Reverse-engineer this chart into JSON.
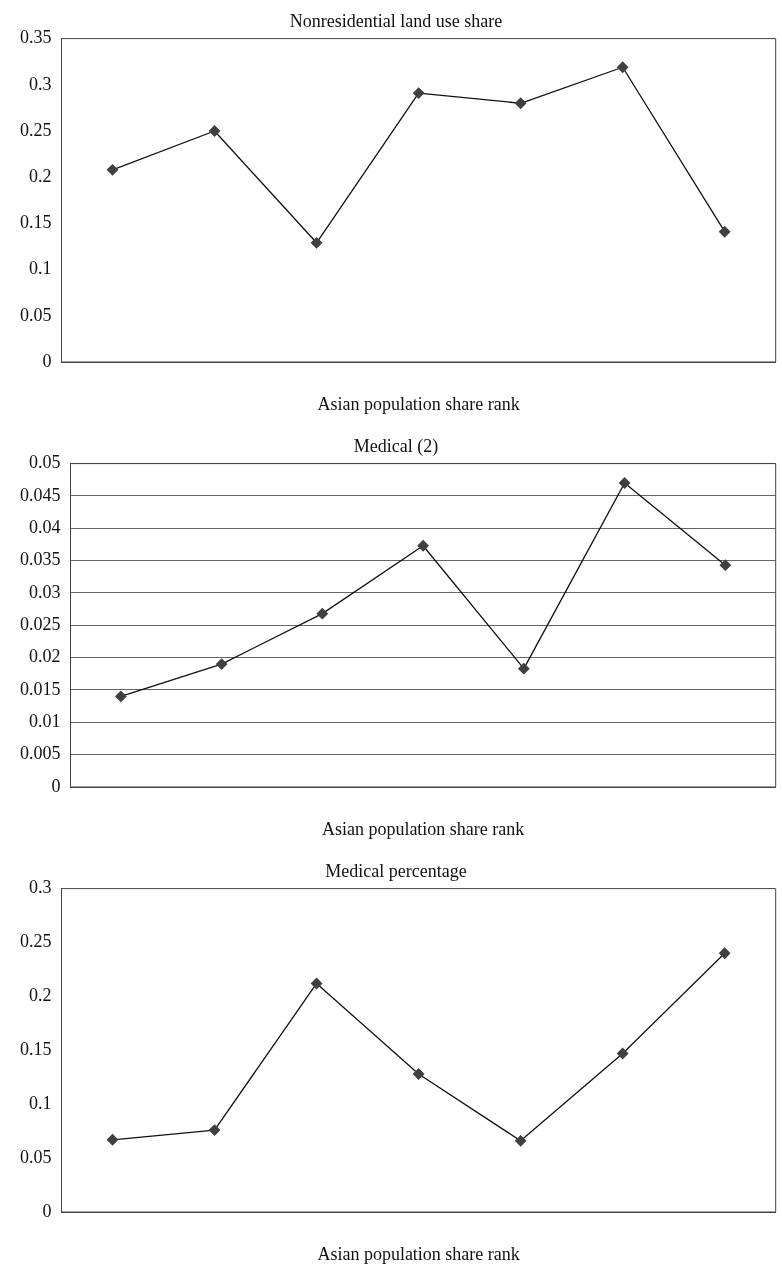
{
  "chart_data": [
    {
      "type": "line",
      "title": "Nonresidential land use share",
      "xlabel": "Asian population share rank",
      "categories": [
        null,
        null,
        null,
        null,
        null,
        null,
        null
      ],
      "series": [
        {
          "color": "#404040",
          "values": [
            0.208,
            0.25,
            0.129,
            0.291,
            0.28,
            0.319,
            0.141
          ]
        }
      ],
      "ylim": [
        0,
        0.35
      ],
      "yticks": [
        0,
        0.05,
        0.1,
        0.15,
        0.2,
        0.25,
        0.3,
        0.35
      ],
      "grid": false,
      "legend": false,
      "marker": "diamond"
    },
    {
      "type": "line",
      "title": "Medical (2)",
      "xlabel": "Asian population share rank",
      "categories": [
        null,
        null,
        null,
        null,
        null,
        null,
        null
      ],
      "series": [
        {
          "color": "#404040",
          "values": [
            0.014,
            0.019,
            0.0268,
            0.0373,
            0.0183,
            0.047,
            0.0343
          ]
        }
      ],
      "ylim": [
        0,
        0.05
      ],
      "yticks": [
        0,
        0.005,
        0.01,
        0.015,
        0.02,
        0.025,
        0.03,
        0.035,
        0.04,
        0.045,
        0.05
      ],
      "grid": "y",
      "legend": false,
      "marker": "diamond"
    },
    {
      "type": "line",
      "title": "Medical percentage",
      "xlabel": "Asian population share rank",
      "categories": [
        null,
        null,
        null,
        null,
        null,
        null,
        null
      ],
      "series": [
        {
          "color": "#404040",
          "values": [
            0.067,
            0.076,
            0.212,
            0.128,
            0.066,
            0.147,
            0.24
          ]
        }
      ],
      "ylim": [
        0,
        0.3
      ],
      "yticks": [
        0,
        0.05,
        0.1,
        0.15,
        0.2,
        0.25,
        0.3
      ],
      "grid": false,
      "legend": false,
      "marker": "diamond"
    }
  ]
}
